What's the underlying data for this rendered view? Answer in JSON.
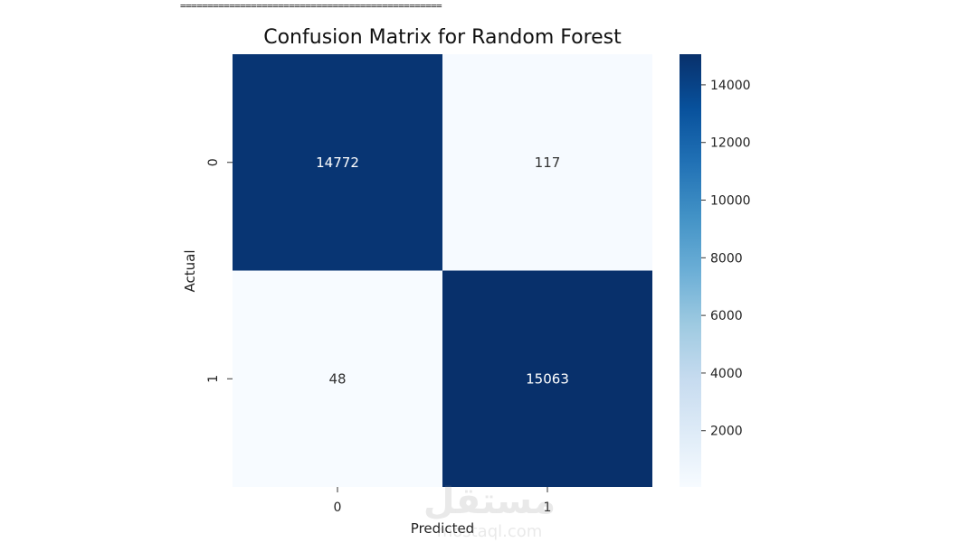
{
  "separator": "================================================",
  "chart_data": {
    "type": "heatmap",
    "title": "Confusion Matrix for Random Forest",
    "xlabel": "Predicted",
    "ylabel": "Actual",
    "x_categories": [
      "0",
      "1"
    ],
    "y_categories": [
      "0",
      "1"
    ],
    "values": [
      [
        14772,
        117
      ],
      [
        48,
        15063
      ]
    ],
    "colormap": "Blues",
    "colorbar": {
      "range": [
        48,
        15063
      ],
      "ticks": [
        2000,
        4000,
        6000,
        8000,
        10000,
        12000,
        14000
      ],
      "tick_labels": [
        "2000",
        "4000",
        "6000",
        "8000",
        "10000",
        "12000",
        "14000"
      ]
    },
    "colors": {
      "low": "#f7fbff",
      "high": "#08306b"
    }
  },
  "watermark": {
    "text": "مستقل",
    "subtext": "mostaql.com"
  }
}
